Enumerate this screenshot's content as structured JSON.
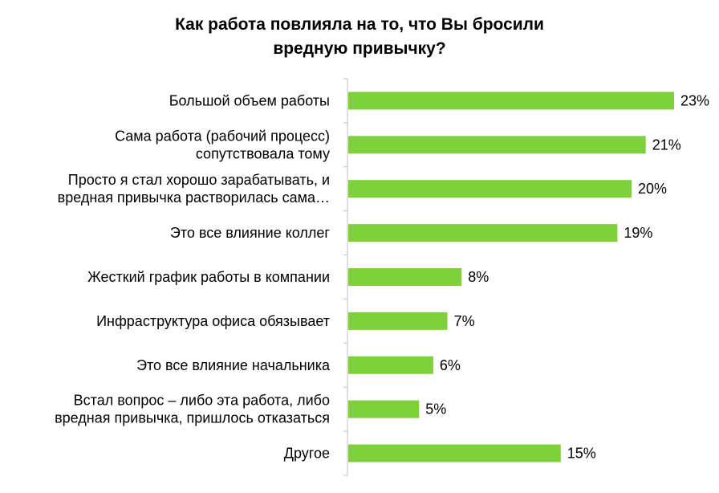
{
  "chart_data": {
    "type": "bar",
    "orientation": "horizontal",
    "title_lines": [
      "Как работа повлияла на то, что Вы бросили",
      "вредную привычку?"
    ],
    "categories": [
      [
        "Большой объем работы"
      ],
      [
        "Сама работа (рабочий процесс)",
        "сопутствовала тому"
      ],
      [
        "Просто я стал хорошо зарабатывать, и",
        "вредная привычка растворилась сама…"
      ],
      [
        "Это все влияние  коллег"
      ],
      [
        "Жесткий график работы в компании"
      ],
      [
        "Инфраструктура офиса обязывает"
      ],
      [
        "Это все влияние  начальника"
      ],
      [
        "Встал вопрос – либо эта работа, либо",
        "вредная привычка, пришлось  отказаться"
      ],
      [
        "Другое"
      ]
    ],
    "values": [
      23,
      21,
      20,
      19,
      8,
      7,
      6,
      5,
      15
    ],
    "value_labels": [
      "23%",
      "21%",
      "20%",
      "19%",
      "8%",
      "7%",
      "6%",
      "5%",
      "15%"
    ],
    "unit": "%",
    "xlim": [
      0,
      23
    ],
    "grid": false,
    "legend": "none",
    "bar_color": "#7ed13a",
    "axis_color": "#bfbfbf"
  }
}
